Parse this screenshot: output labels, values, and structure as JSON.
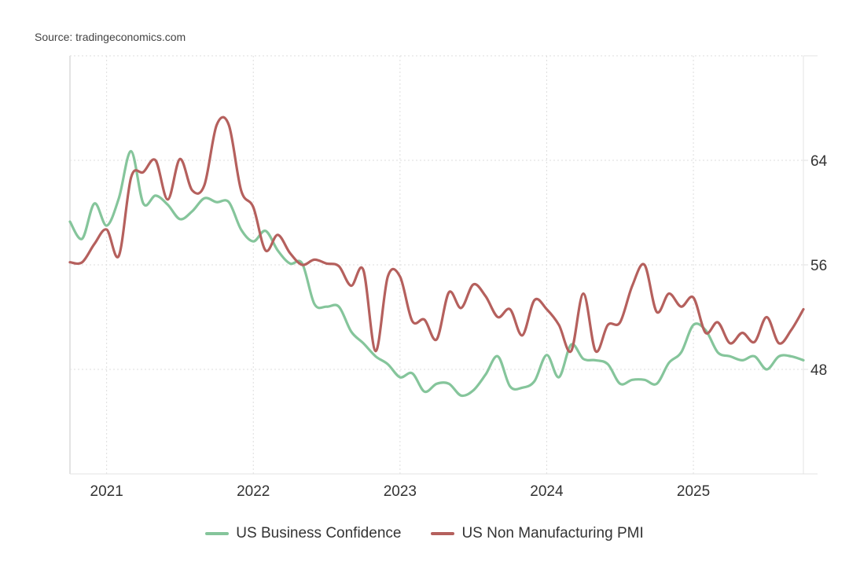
{
  "source": "Source: tradingeconomics.com",
  "colors": {
    "series_1": "#85c59b",
    "series_2": "#b5605d",
    "grid": "#dddddd",
    "axis": "#e0e0e0"
  },
  "chart_data": {
    "type": "line",
    "title": "",
    "xlabel": "",
    "ylabel": "",
    "x_start": "2020-10",
    "x_end": "2025-10",
    "frequency": "monthly",
    "x_tick_labels": [
      "2021",
      "2022",
      "2023",
      "2024",
      "2025"
    ],
    "y_tick_labels": [
      "64",
      "56",
      "48"
    ],
    "y_ticks": [
      64,
      56,
      48
    ],
    "ylim": [
      40,
      72
    ],
    "y_axis_side": "right",
    "grid": true,
    "legend_position": "bottom-center",
    "series": [
      {
        "name": "US Business Confidence",
        "color": "#85c59b",
        "values": [
          59.3,
          58.0,
          60.7,
          59.0,
          61.1,
          64.7,
          60.7,
          61.3,
          60.6,
          59.5,
          60.1,
          61.1,
          60.8,
          60.8,
          58.7,
          57.8,
          58.6,
          57.1,
          56.1,
          56.1,
          53.0,
          52.8,
          52.8,
          50.9,
          50.0,
          49.0,
          48.4,
          47.4,
          47.7,
          46.3,
          46.9,
          46.9,
          46.0,
          46.4,
          47.6,
          49.0,
          46.7,
          46.6,
          47.1,
          49.1,
          47.4,
          49.9,
          48.8,
          48.7,
          48.4,
          46.9,
          47.2,
          47.2,
          46.9,
          48.5,
          49.3,
          51.4,
          51.0,
          49.3,
          49.0,
          48.7,
          49.0,
          48.0,
          49.0,
          49.0,
          48.7
        ]
      },
      {
        "name": "US Non Manufacturing PMI",
        "color": "#b5605d",
        "values": [
          56.2,
          56.2,
          57.6,
          58.7,
          56.7,
          62.7,
          63.1,
          64.0,
          61.0,
          64.1,
          61.7,
          62.1,
          66.7,
          66.7,
          61.7,
          60.4,
          57.1,
          58.3,
          56.9,
          56.0,
          56.4,
          56.1,
          55.9,
          54.4,
          55.6,
          49.4,
          55.1,
          55.1,
          51.7,
          51.8,
          50.3,
          53.9,
          52.7,
          54.5,
          53.6,
          52.0,
          52.6,
          50.6,
          53.3,
          52.6,
          51.4,
          49.4,
          53.8,
          49.4,
          51.4,
          51.6,
          54.4,
          56.0,
          52.4,
          53.8,
          52.8,
          53.5,
          50.8,
          51.6,
          50.0,
          50.8,
          50.1,
          52.0,
          50.0,
          51.0,
          52.6
        ]
      }
    ]
  },
  "legend": [
    {
      "label": "US Business Confidence",
      "color": "#85c59b"
    },
    {
      "label": "US Non Manufacturing PMI",
      "color": "#b5605d"
    }
  ]
}
